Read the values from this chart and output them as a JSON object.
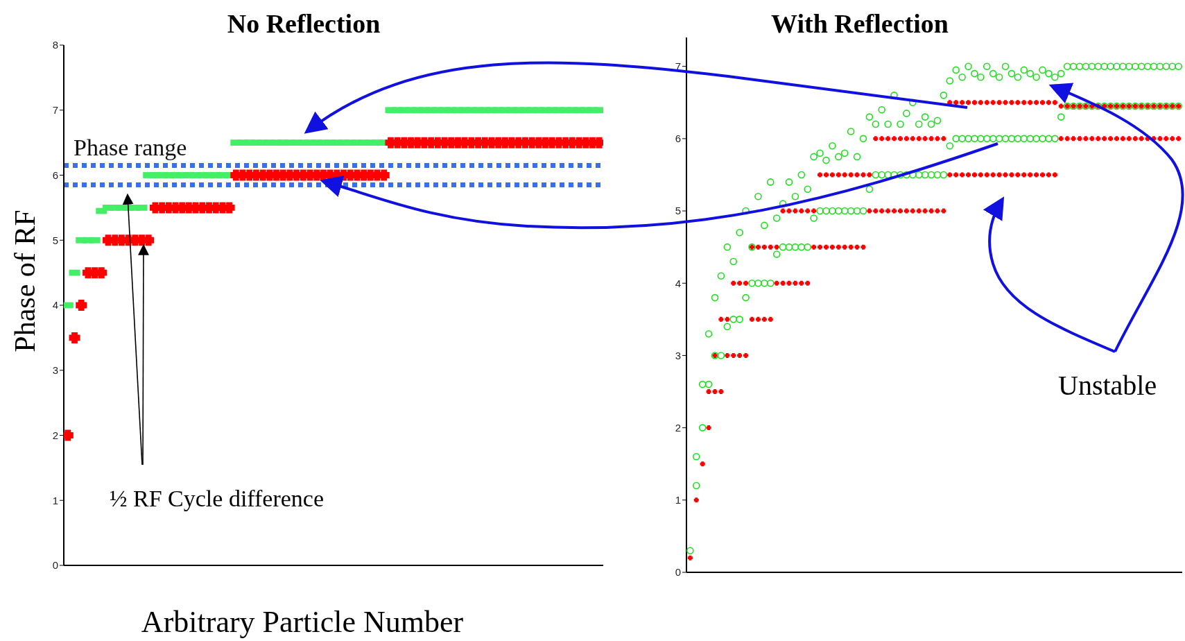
{
  "chart_data": [
    {
      "type": "scatter",
      "title": "No Reflection",
      "xlabel": "Arbitrary Particle Number",
      "ylabel": "Phase of RF",
      "categories": [
        null,
        null,
        null,
        null,
        null,
        null,
        null,
        null,
        null,
        null,
        null,
        null,
        null,
        null,
        null,
        null,
        null,
        null,
        null,
        null,
        null,
        null,
        null,
        null,
        null,
        null,
        null,
        null,
        null,
        null,
        null,
        null,
        null,
        null,
        null,
        null,
        null,
        null,
        null,
        null,
        null,
        null,
        null,
        null,
        null,
        null,
        null,
        null,
        null,
        null,
        null,
        null,
        null,
        null,
        null,
        null,
        null,
        null,
        null,
        null,
        null,
        null,
        null,
        null,
        null,
        null,
        null,
        null,
        null,
        null,
        null,
        null,
        null,
        null,
        null,
        null,
        null,
        null,
        null,
        null
      ],
      "ylim": [
        0,
        8
      ],
      "yticks": [
        0,
        1,
        2,
        3,
        4,
        5,
        6,
        7,
        8
      ],
      "series": [
        {
          "color": "#44ee66",
          "marker": "square",
          "values": [
            4,
            4.5,
            5,
            5,
            5,
            5.45,
            5.5,
            5.5,
            5.5,
            5.5,
            5.5,
            5.5,
            6,
            6,
            6,
            6,
            6,
            6,
            6,
            6,
            6,
            6,
            6,
            6,
            6,
            6.5,
            6.5,
            6.5,
            6.5,
            6.5,
            6.5,
            6.5,
            6.5,
            6.5,
            6.5,
            6.5,
            6.5,
            6.5,
            6.5,
            6.5,
            6.5,
            6.5,
            6.5,
            6.5,
            6.5,
            6.5,
            6.5,
            6.5,
            7,
            7,
            7,
            7,
            7,
            7,
            7,
            7,
            7,
            7,
            7,
            7,
            7,
            7,
            7,
            7,
            7,
            7,
            7,
            7,
            7,
            7,
            7,
            7,
            7,
            7,
            7,
            7,
            7,
            7,
            7,
            7
          ]
        },
        {
          "color": "#ff0000",
          "marker": "cross",
          "values": [
            2,
            3.5,
            4,
            4.5,
            4.5,
            4.5,
            5,
            5,
            5,
            5,
            5,
            5,
            5,
            5.5,
            5.5,
            5.5,
            5.5,
            5.5,
            5.5,
            5.5,
            5.5,
            5.5,
            5.5,
            5.5,
            5.5,
            6,
            6,
            6,
            6,
            6,
            6,
            6,
            6,
            6,
            6,
            6,
            6,
            6,
            6,
            6,
            6,
            6,
            6,
            6,
            6,
            6,
            6,
            6,
            6.5,
            6.5,
            6.5,
            6.5,
            6.5,
            6.5,
            6.5,
            6.5,
            6.5,
            6.5,
            6.5,
            6.5,
            6.5,
            6.5,
            6.5,
            6.5,
            6.5,
            6.5,
            6.5,
            6.5,
            6.5,
            6.5,
            6.5,
            6.5,
            6.5,
            6.5,
            6.5,
            6.5,
            6.5,
            6.5,
            6.5,
            6.5
          ]
        }
      ],
      "ref_lines": [
        {
          "axis": "y",
          "value": 6.15,
          "label": "Phase range",
          "color": "#3a6ef0",
          "line_style": "dotted"
        },
        {
          "axis": "y",
          "value": 5.85,
          "color": "#3a6ef0",
          "line_style": "dotted"
        }
      ],
      "annotations": [
        "½ RF Cycle difference"
      ]
    },
    {
      "type": "scatter",
      "title": "With Reflection",
      "categories": [
        null,
        null,
        null,
        null,
        null,
        null,
        null,
        null,
        null,
        null,
        null,
        null,
        null,
        null,
        null,
        null,
        null,
        null,
        null,
        null,
        null,
        null,
        null,
        null,
        null,
        null,
        null,
        null,
        null,
        null,
        null,
        null,
        null,
        null,
        null,
        null,
        null,
        null,
        null,
        null,
        null,
        null,
        null,
        null,
        null,
        null,
        null,
        null,
        null,
        null,
        null,
        null,
        null,
        null,
        null,
        null,
        null,
        null,
        null,
        null,
        null,
        null,
        null,
        null,
        null,
        null,
        null,
        null,
        null,
        null,
        null,
        null,
        null,
        null,
        null,
        null,
        null,
        null,
        null,
        null
      ],
      "ylim": [
        0,
        7.4
      ],
      "yticks": [
        0,
        1,
        2,
        3,
        4,
        5,
        6,
        7
      ],
      "series": [
        {
          "color": "#22dd22",
          "marker": "circle",
          "values": [
            null,
            1.6,
            2.6,
            3.3,
            3.8,
            4.1,
            4.5,
            4.3,
            4.7,
            5.0,
            4.5,
            5.2,
            4.8,
            5.4,
            4.9,
            5.1,
            5.4,
            5.2,
            5.5,
            5.3,
            5.75,
            5.8,
            5.7,
            5.9,
            5.75,
            5.8,
            6.1,
            5.75,
            6.0,
            6.3,
            6.2,
            6.4,
            6.2,
            6.6,
            6.2,
            6.35,
            6.5,
            6.2,
            6.3,
            6.2,
            6.25,
            6.6,
            6.8,
            6.95,
            6.85,
            7.0,
            6.9,
            6.85,
            7.0,
            6.9,
            6.85,
            7.0,
            6.9,
            6.85,
            6.95,
            6.9,
            6.85,
            6.95,
            6.9,
            6.85,
            6.9,
            7,
            7,
            7,
            7,
            7,
            7,
            7,
            7,
            7,
            7,
            7,
            7,
            7,
            7,
            7,
            7,
            7,
            7,
            7
          ]
        },
        {
          "color": "#22dd22",
          "marker": "circle",
          "values": [
            0.3,
            1.2,
            2.0,
            2.6,
            3,
            3,
            3.4,
            3.5,
            3.5,
            3.8,
            4,
            4,
            4,
            4,
            4.4,
            4.5,
            4.5,
            4.5,
            4.5,
            4.5,
            4.9,
            5,
            5,
            5,
            5,
            5,
            5,
            5,
            5,
            5.3,
            5.5,
            5.5,
            5.5,
            5.5,
            5.5,
            5.5,
            5.5,
            5.5,
            5.5,
            5.5,
            5.5,
            5.5,
            5.9,
            6,
            6,
            6,
            6,
            6,
            6,
            6,
            6,
            6,
            6,
            6,
            6,
            6,
            6,
            6,
            6,
            6,
            6.3,
            6.45,
            6.45,
            6.45,
            6.45,
            6.45,
            6.45,
            6.45,
            6.45,
            6.45,
            6.45,
            6.45,
            6.45,
            6.45,
            6.45,
            6.45,
            6.45,
            6.45,
            6.45,
            6.45
          ]
        },
        {
          "color": "#ff0000",
          "marker": "cross",
          "values": [
            null,
            null,
            null,
            2.5,
            3.0,
            3.5,
            3.5,
            4,
            4,
            4,
            4.5,
            4.5,
            4.5,
            4.5,
            4.5,
            5,
            5,
            5,
            5,
            5,
            5,
            5.5,
            5.5,
            5.5,
            5.5,
            5.5,
            5.5,
            5.5,
            5.5,
            5.5,
            6,
            6,
            6,
            6,
            6,
            6,
            6,
            6,
            6,
            6,
            6,
            6,
            6.5,
            6.5,
            6.5,
            6.5,
            6.5,
            6.5,
            6.5,
            6.5,
            6.5,
            6.5,
            6.5,
            6.5,
            6.5,
            6.5,
            6.5,
            6.5,
            6.5,
            6.5,
            6.45,
            6.45,
            6.45,
            6.45,
            6.45,
            6.45,
            6.45,
            6.45,
            6.45,
            6.45,
            6.45,
            6.45,
            6.45,
            6.45,
            6.45,
            6.45,
            6.45,
            6.45,
            6.45,
            6.45
          ]
        },
        {
          "color": "#ff0000",
          "marker": "cross",
          "values": [
            0.2,
            1.0,
            1.5,
            2.0,
            2.5,
            2.5,
            3,
            3,
            3,
            3,
            3.5,
            3.5,
            3.5,
            3.5,
            4,
            4,
            4,
            4,
            4,
            4,
            4.5,
            4.5,
            4.5,
            4.5,
            4.5,
            4.5,
            4.5,
            4.5,
            4.5,
            5,
            5,
            5,
            5,
            5,
            5,
            5,
            5,
            5,
            5,
            5,
            5,
            5,
            5.5,
            5.5,
            5.5,
            5.5,
            5.5,
            5.5,
            5.5,
            5.5,
            5.5,
            5.5,
            5.5,
            5.5,
            5.5,
            5.5,
            5.5,
            5.5,
            5.5,
            5.5,
            6,
            6,
            6,
            6,
            6,
            6,
            6,
            6,
            6,
            6,
            6,
            6,
            6,
            6,
            6,
            6,
            6,
            6,
            6,
            6
          ]
        }
      ],
      "annotations": [
        "Unstable"
      ]
    }
  ]
}
